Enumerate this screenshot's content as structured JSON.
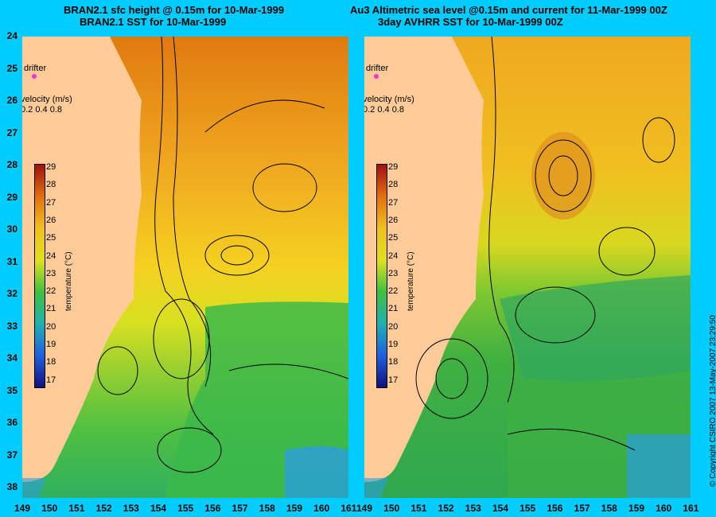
{
  "left_panel": {
    "title_line1": "BRAN2.1 sfc height @ 0.15m for 10-Mar-1999",
    "title_line2": "BRAN2.1 SST for 10-Mar-1999",
    "legend": {
      "drifter_label": "drifter",
      "velocity_label": "velocity (m/s)",
      "velocity_values": "0.2 0.4 0.8"
    },
    "colorbar": {
      "ticks": [
        "29",
        "28",
        "27",
        "26",
        "25",
        "24",
        "23",
        "22",
        "21",
        "20",
        "19",
        "18",
        "17"
      ],
      "label": "temperature (°C)"
    }
  },
  "right_panel": {
    "title_line1": "Au3 Altimetric sea level  @0.15m and current for 11-Mar-1999 00Z",
    "title_line2": "3day AVHRR SST for 10-Mar-1999 00Z",
    "legend": {
      "drifter_label": "drifter",
      "velocity_label": "velocity (m/s)",
      "velocity_values": "0.2 0.4 0.8"
    },
    "colorbar": {
      "ticks": [
        "29",
        "28",
        "27",
        "26",
        "25",
        "24",
        "23",
        "22",
        "21",
        "20",
        "19",
        "18",
        "17"
      ],
      "label": "temperature (°C)"
    }
  },
  "axes": {
    "y_ticks": [
      "24",
      "25",
      "26",
      "27",
      "28",
      "29",
      "30",
      "31",
      "32",
      "33",
      "34",
      "35",
      "36",
      "37",
      "38"
    ],
    "x_ticks_left": [
      "149",
      "150",
      "151",
      "152",
      "153",
      "154",
      "155",
      "156",
      "157",
      "158",
      "159",
      "160",
      "161"
    ],
    "x_ticks_right": [
      "149",
      "150",
      "151",
      "152",
      "153",
      "154",
      "155",
      "156",
      "157",
      "158",
      "159",
      "160",
      "161"
    ]
  },
  "copyright": "© Copyright CSIRO 2007    13-May-2007 23:29:50",
  "colors": {
    "background": "#00ccff",
    "land": "#ffcc99",
    "warm": "#e69a1a",
    "mid": "#f0d000",
    "cool": "#2fb24a",
    "cold": "#1e8fe0",
    "drifter": "#ff33cc"
  }
}
